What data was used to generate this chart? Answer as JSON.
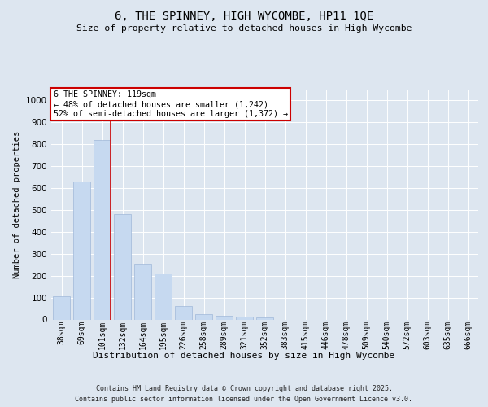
{
  "title": "6, THE SPINNEY, HIGH WYCOMBE, HP11 1QE",
  "subtitle": "Size of property relative to detached houses in High Wycombe",
  "xlabel": "Distribution of detached houses by size in High Wycombe",
  "ylabel": "Number of detached properties",
  "categories": [
    "38sqm",
    "69sqm",
    "101sqm",
    "132sqm",
    "164sqm",
    "195sqm",
    "226sqm",
    "258sqm",
    "289sqm",
    "321sqm",
    "352sqm",
    "383sqm",
    "415sqm",
    "446sqm",
    "478sqm",
    "509sqm",
    "540sqm",
    "572sqm",
    "603sqm",
    "635sqm",
    "666sqm"
  ],
  "values": [
    107,
    630,
    820,
    480,
    255,
    210,
    62,
    25,
    18,
    12,
    8,
    0,
    0,
    0,
    0,
    0,
    0,
    0,
    0,
    0,
    0
  ],
  "bar_color": "#c6d9f0",
  "bar_edgecolor": "#a0b8d8",
  "highlight_line_color": "#cc0000",
  "annotation_text": "6 THE SPINNEY: 119sqm\n← 48% of detached houses are smaller (1,242)\n52% of semi-detached houses are larger (1,372) →",
  "annotation_box_facecolor": "#ffffff",
  "annotation_box_edgecolor": "#cc0000",
  "annotation_text_color": "#000000",
  "ylim": [
    0,
    1050
  ],
  "yticks": [
    0,
    100,
    200,
    300,
    400,
    500,
    600,
    700,
    800,
    900,
    1000
  ],
  "background_color": "#dde6f0",
  "plot_background": "#dde6f0",
  "grid_color": "#ffffff",
  "footer_line1": "Contains HM Land Registry data © Crown copyright and database right 2025.",
  "footer_line2": "Contains public sector information licensed under the Open Government Licence v3.0."
}
